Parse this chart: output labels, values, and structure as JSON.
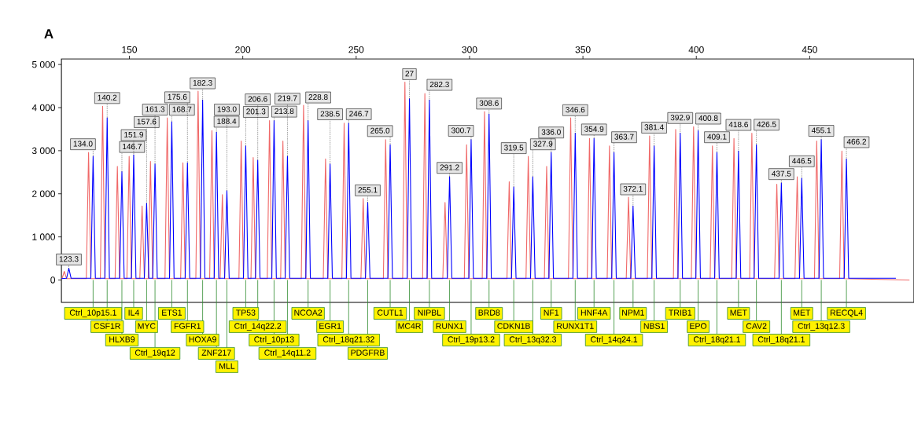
{
  "chart_data": {
    "type": "line",
    "title": "A",
    "xlim": [
      120,
      496
    ],
    "ylim": [
      -520,
      5130
    ],
    "xticks": [
      150,
      200,
      250,
      300,
      350,
      400,
      450
    ],
    "yticks": [
      0,
      {
        "value": 1000,
        "label": "1 000"
      },
      {
        "value": 2000,
        "label": "2 000"
      },
      {
        "value": 3000,
        "label": "3 000"
      },
      {
        "value": 4000,
        "label": "4 000"
      },
      {
        "value": 5000,
        "label": "5 000"
      }
    ],
    "series": [
      {
        "color": "#f06868",
        "x": [
          120,
          120.3,
          121.3,
          122.3,
          131,
          132,
          133,
          137.2,
          138.2,
          139.2,
          143.7,
          144.7,
          145.7,
          148.9,
          149.9,
          150.9,
          154.6,
          155.6,
          156.6,
          158.3,
          159.3,
          160.3,
          165.7,
          166.7,
          167.7,
          172.6,
          173.6,
          174.6,
          179.3,
          180.3,
          181.3,
          185.4,
          186.4,
          187.4,
          190,
          191,
          192,
          198.3,
          199.3,
          200.3,
          203.6,
          204.6,
          205.6,
          210.8,
          211.8,
          212.8,
          216.7,
          217.7,
          218.7,
          225.8,
          226.8,
          227.8,
          235.5,
          236.5,
          237.5,
          243.7,
          244.7,
          245.7,
          252.1,
          253.1,
          254.1,
          262,
          263,
          264,
          270.5,
          271.5,
          272.5,
          279.3,
          280.3,
          281.3,
          288.2,
          289.2,
          290.2,
          297.7,
          298.7,
          299.7,
          305.6,
          306.6,
          307.6,
          316.5,
          317.5,
          318.5,
          324.9,
          325.9,
          326.9,
          333,
          334,
          335,
          343.6,
          344.6,
          345.6,
          351.9,
          352.9,
          353.9,
          360.7,
          361.7,
          362.7,
          369.1,
          370.1,
          371.1,
          378.4,
          379.4,
          380.4,
          389.9,
          390.9,
          391.9,
          397.8,
          398.8,
          399.8,
          406.1,
          407.1,
          408.1,
          415.6,
          416.6,
          417.6,
          423.5,
          424.5,
          425.5,
          434.5,
          435.5,
          436.5,
          443.5,
          444.5,
          445.5,
          452.1,
          453.1,
          454.1,
          463.2,
          464.2,
          465.2,
          494
        ],
        "values": [
          30,
          30,
          200,
          30,
          30,
          2960,
          30,
          30,
          4030,
          30,
          30,
          2635,
          30,
          30,
          2870,
          30,
          30,
          1715,
          30,
          30,
          2750,
          30,
          30,
          3760,
          30,
          30,
          2720,
          30,
          30,
          4380,
          30,
          30,
          3465,
          30,
          30,
          1980,
          30,
          30,
          3225,
          30,
          30,
          2840,
          30,
          30,
          3700,
          30,
          30,
          3225,
          30,
          30,
          4055,
          30,
          30,
          2810,
          30,
          30,
          3640,
          30,
          30,
          1890,
          30,
          30,
          3255,
          30,
          30,
          4590,
          30,
          30,
          4325,
          30,
          30,
          1800,
          30,
          30,
          3140,
          30,
          30,
          3910,
          30,
          30,
          2280,
          30,
          30,
          2870,
          30,
          30,
          2635,
          30,
          30,
          3760,
          30,
          30,
          3285,
          30,
          30,
          3110,
          30,
          30,
          1920,
          30,
          30,
          3345,
          30,
          30,
          3495,
          30,
          30,
          3555,
          30,
          30,
          3110,
          30,
          30,
          3285,
          30,
          30,
          3405,
          30,
          30,
          2220,
          30,
          30,
          2395,
          30,
          30,
          3225,
          30,
          30,
          2990,
          30,
          0
        ]
      },
      {
        "color": "#0000ff",
        "x": [
          120,
          122.3,
          123.3,
          124.3,
          133,
          134,
          135,
          139.2,
          140.2,
          141.2,
          145.7,
          146.7,
          147.7,
          150.9,
          151.9,
          152.9,
          156.6,
          157.6,
          158.6,
          160.3,
          161.3,
          162.3,
          167.7,
          168.7,
          169.7,
          174.6,
          175.6,
          176.6,
          181.3,
          182.3,
          183.3,
          187.4,
          188.4,
          189.4,
          192,
          193,
          194,
          200.3,
          201.3,
          202.3,
          205.6,
          206.6,
          207.6,
          212.8,
          213.8,
          214.8,
          218.7,
          219.7,
          220.7,
          227.8,
          228.8,
          229.8,
          237.5,
          238.5,
          239.5,
          245.7,
          246.7,
          247.7,
          254.1,
          255.1,
          256.1,
          264,
          265,
          266,
          272.5,
          273.5,
          274.5,
          281.3,
          282.3,
          283.3,
          290.2,
          291.2,
          292.2,
          299.7,
          300.7,
          301.7,
          307.6,
          308.6,
          309.6,
          318.5,
          319.5,
          320.5,
          326.9,
          327.9,
          328.9,
          335,
          336,
          337,
          345.6,
          346.6,
          347.6,
          353.9,
          354.9,
          355.9,
          362.7,
          363.7,
          364.7,
          371.1,
          372.1,
          373.1,
          380.4,
          381.4,
          382.4,
          391.9,
          392.9,
          393.9,
          399.8,
          400.8,
          401.8,
          408.1,
          409.1,
          410.1,
          417.6,
          418.6,
          419.6,
          425.5,
          426.5,
          427.5,
          436.5,
          437.5,
          438.5,
          445.5,
          446.5,
          447.5,
          454.1,
          455.1,
          456.1,
          465.2,
          466.2,
          467.2,
          488
        ],
        "values": [
          30,
          40,
          270,
          40,
          40,
          2870,
          40,
          40,
          3760,
          40,
          40,
          2515,
          40,
          40,
          2900,
          40,
          40,
          1780,
          40,
          40,
          2690,
          40,
          40,
          3670,
          40,
          40,
          2720,
          40,
          40,
          4175,
          40,
          40,
          3430,
          40,
          40,
          2070,
          40,
          40,
          3110,
          40,
          40,
          2780,
          40,
          40,
          3700,
          40,
          40,
          2870,
          40,
          40,
          3700,
          40,
          40,
          2690,
          40,
          40,
          3640,
          40,
          40,
          1800,
          40,
          40,
          3140,
          40,
          40,
          4205,
          40,
          40,
          4175,
          40,
          40,
          2395,
          40,
          40,
          3255,
          40,
          40,
          3850,
          40,
          40,
          2160,
          40,
          40,
          2395,
          40,
          40,
          2960,
          40,
          40,
          3405,
          40,
          40,
          3285,
          40,
          40,
          2960,
          40,
          40,
          1715,
          40,
          40,
          3110,
          40,
          40,
          3405,
          40,
          40,
          3465,
          40,
          40,
          2960,
          40,
          40,
          2990,
          40,
          40,
          3140,
          40,
          40,
          2250,
          40,
          40,
          2365,
          40,
          40,
          3255,
          40,
          40,
          2810,
          40,
          40
        ]
      }
    ],
    "annotations": [
      {
        "text": "123.3",
        "x": 123.3,
        "y": 270
      },
      {
        "text": "134.0",
        "x": 134.0,
        "y": 2870
      },
      {
        "text": "140.2",
        "x": 140.2,
        "y": 3760
      },
      {
        "text": "146.7",
        "x": 146.7,
        "y": 2515
      },
      {
        "text": "151.9",
        "x": 151.9,
        "y": 2900
      },
      {
        "text": "157.6",
        "x": 157.6,
        "y": 1780
      },
      {
        "text": "161.3",
        "x": 161.3,
        "y": 2690
      },
      {
        "text": "168.7",
        "x": 168.7,
        "y": 3670
      },
      {
        "text": "175.6",
        "x": 175.6,
        "y": 2720
      },
      {
        "text": "182.3",
        "x": 182.3,
        "y": 4175
      },
      {
        "text": "188.4",
        "x": 188.4,
        "y": 3430
      },
      {
        "text": "193.0",
        "x": 193.0,
        "y": 2070
      },
      {
        "text": "201.3",
        "x": 201.3,
        "y": 3110
      },
      {
        "text": "206.6",
        "x": 206.6,
        "y": 2780
      },
      {
        "text": "213.8",
        "x": 213.8,
        "y": 3700
      },
      {
        "text": "219.7",
        "x": 219.7,
        "y": 2870
      },
      {
        "text": "228.8",
        "x": 228.8,
        "y": 3700
      },
      {
        "text": "238.5",
        "x": 238.5,
        "y": 2690
      },
      {
        "text": "246.7",
        "x": 246.7,
        "y": 3640
      },
      {
        "text": "255.1",
        "x": 255.1,
        "y": 1800
      },
      {
        "text": "265.0",
        "x": 265.0,
        "y": 3140
      },
      {
        "text": "27",
        "x": 273.5,
        "y": 4205
      },
      {
        "text": "282.3",
        "x": 282.3,
        "y": 4175
      },
      {
        "text": "291.2",
        "x": 291.2,
        "y": 2395
      },
      {
        "text": "300.7",
        "x": 300.7,
        "y": 3255
      },
      {
        "text": "308.6",
        "x": 308.6,
        "y": 3850
      },
      {
        "text": "319.5",
        "x": 319.5,
        "y": 2160
      },
      {
        "text": "327.9",
        "x": 327.9,
        "y": 2395
      },
      {
        "text": "336.0",
        "x": 336.0,
        "y": 2960
      },
      {
        "text": "346.6",
        "x": 346.6,
        "y": 3405
      },
      {
        "text": "354.9",
        "x": 354.9,
        "y": 3285
      },
      {
        "text": "363.7",
        "x": 363.7,
        "y": 2960
      },
      {
        "text": "372.1",
        "x": 372.1,
        "y": 1715
      },
      {
        "text": "381.4",
        "x": 381.4,
        "y": 3110
      },
      {
        "text": "392.9",
        "x": 392.9,
        "y": 3405
      },
      {
        "text": "400.8",
        "x": 400.8,
        "y": 3465
      },
      {
        "text": "409.1",
        "x": 409.1,
        "y": 2960
      },
      {
        "text": "418.6",
        "x": 418.6,
        "y": 2990
      },
      {
        "text": "426.5",
        "x": 426.5,
        "y": 3140
      },
      {
        "text": "437.5",
        "x": 437.5,
        "y": 2250
      },
      {
        "text": "446.5",
        "x": 446.5,
        "y": 2365
      },
      {
        "text": "455.1",
        "x": 455.1,
        "y": 3255
      },
      {
        "text": "466.2",
        "x": 466.2,
        "y": 2810
      },
      {
        "text": "Ctrl_10p15.1",
        "x": 134.0,
        "y": 0
      },
      {
        "text": "CSF1R",
        "x": 140.2,
        "y": 0
      },
      {
        "text": "HLXB9",
        "x": 146.7,
        "y": 0
      },
      {
        "text": "IL4",
        "x": 151.9,
        "y": 0
      },
      {
        "text": "MYC",
        "x": 157.6,
        "y": 0
      },
      {
        "text": "Ctrl_19q12",
        "x": 161.3,
        "y": 0
      },
      {
        "text": "ETS1",
        "x": 168.7,
        "y": 0
      },
      {
        "text": "FGFR1",
        "x": 175.6,
        "y": 0
      },
      {
        "text": "HOXA9",
        "x": 182.3,
        "y": 0
      },
      {
        "text": "ZNF217",
        "x": 188.4,
        "y": 0
      },
      {
        "text": "MLL",
        "x": 193.0,
        "y": 0
      },
      {
        "text": "TP53",
        "x": 201.3,
        "y": 0
      },
      {
        "text": "Ctrl_14q22.2",
        "x": 206.6,
        "y": 0
      },
      {
        "text": "Ctrl_10p13",
        "x": 213.8,
        "y": 0
      },
      {
        "text": "Ctrl_14q11.2",
        "x": 219.7,
        "y": 0
      },
      {
        "text": "NCOA2",
        "x": 228.8,
        "y": 0
      },
      {
        "text": "EGR1",
        "x": 238.5,
        "y": 0
      },
      {
        "text": "Ctrl_18q21.32",
        "x": 246.7,
        "y": 0
      },
      {
        "text": "PDGFRB",
        "x": 255.1,
        "y": 0
      },
      {
        "text": "CUTL1",
        "x": 265.0,
        "y": 0
      },
      {
        "text": "MC4R",
        "x": 273.5,
        "y": 0
      },
      {
        "text": "NIPBL",
        "x": 282.3,
        "y": 0
      },
      {
        "text": "RUNX1",
        "x": 291.2,
        "y": 0
      },
      {
        "text": "Ctrl_19p13.2",
        "x": 300.7,
        "y": 0
      },
      {
        "text": "BRD8",
        "x": 308.6,
        "y": 0
      },
      {
        "text": "CDKN1B",
        "x": 319.5,
        "y": 0
      },
      {
        "text": "Ctrl_13q32.3",
        "x": 327.9,
        "y": 0
      },
      {
        "text": "NF1",
        "x": 336.0,
        "y": 0
      },
      {
        "text": "RUNX1T1",
        "x": 346.6,
        "y": 0
      },
      {
        "text": "HNF4A",
        "x": 354.9,
        "y": 0
      },
      {
        "text": "Ctrl_14q24.1",
        "x": 363.7,
        "y": 0
      },
      {
        "text": "NPM1",
        "x": 372.1,
        "y": 0
      },
      {
        "text": "NBS1",
        "x": 381.4,
        "y": 0
      },
      {
        "text": "TRIB1",
        "x": 392.9,
        "y": 0
      },
      {
        "text": "EPO",
        "x": 400.8,
        "y": 0
      },
      {
        "text": "Ctrl_18q21.1",
        "x": 409.1,
        "y": 0
      },
      {
        "text": "MET",
        "x": 418.6,
        "y": 0
      },
      {
        "text": "CAV2",
        "x": 426.5,
        "y": 0
      },
      {
        "text": "Ctrl_18q21.1",
        "x": 437.5,
        "y": 0
      },
      {
        "text": "MET",
        "x": 446.5,
        "y": 0
      },
      {
        "text": "Ctrl_13q12.3",
        "x": 455.1,
        "y": 0
      },
      {
        "text": "RECQL4",
        "x": 466.2,
        "y": 0
      }
    ]
  }
}
